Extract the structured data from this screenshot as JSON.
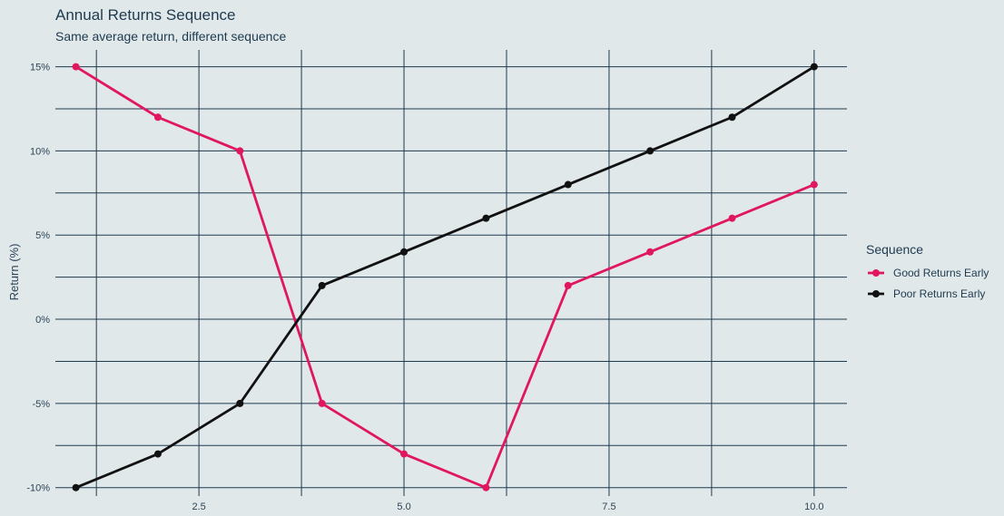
{
  "chart_data": {
    "type": "line",
    "title": "Annual Returns Sequence",
    "subtitle": "Same average return, different sequence",
    "xlabel": "",
    "ylabel": "Return (%)",
    "xlim": [
      0.75,
      10.4
    ],
    "ylim": [
      -10.5,
      16
    ],
    "x_ticks": [
      2.5,
      5.0,
      7.5,
      10.0
    ],
    "x_tick_labels": [
      "2.5",
      "5.0",
      "7.5",
      "10.0"
    ],
    "x_minor_ticks": [
      1.25,
      3.75,
      6.25,
      8.75
    ],
    "y_ticks": [
      -10,
      -5,
      0,
      5,
      10,
      15
    ],
    "y_tick_labels": [
      "-10%",
      "-5%",
      "0%",
      "5%",
      "10%",
      "15%"
    ],
    "y_minor_ticks": [
      -7.5,
      -2.5,
      2.5,
      7.5,
      12.5
    ],
    "grid": true,
    "legend": {
      "title": "Sequence",
      "placement": "right"
    },
    "x": [
      1,
      2,
      3,
      4,
      5,
      6,
      7,
      8,
      9,
      10
    ],
    "series": [
      {
        "name": "Good Returns Early",
        "color": "#e0175f",
        "values": [
          15,
          12,
          10,
          -5,
          -8,
          -10,
          2,
          4,
          6,
          8
        ]
      },
      {
        "name": "Poor Returns Early",
        "color": "#111111",
        "values": [
          -10,
          -8,
          -5,
          2,
          4,
          6,
          8,
          10,
          12,
          15
        ]
      }
    ],
    "colors": {
      "background": "#e1e8ea",
      "grid": "#1e3a4f",
      "text": "#1e3a4f"
    }
  }
}
